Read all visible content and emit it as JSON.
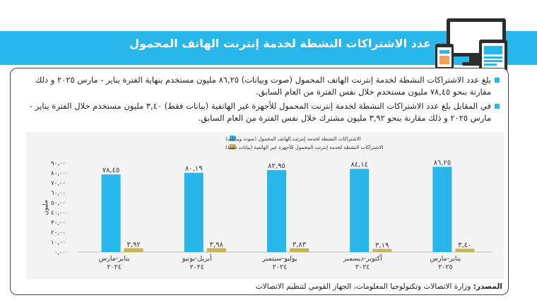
{
  "header": {
    "title": "عدد الاشتراكات النشطة لخدمة إنترنت الهاتف المحمول"
  },
  "bullets": [
    "بلغ عدد الاشتراكات النشطة لخدمة إنترنت الهاتف المحمول (صوت وبيانات) ٨٦,٢٥ مليون مستخدم بنهاية الفترة يناير - مارس ٢٠٢٥ و ذلك مقارنة بنحو ٧٨,٤٥ مليون مستخدم خلال نفس الفترة من العام السابق.",
    "في المقابل بلغ عدد الاشتراكات النشطة لخدمة إنترنت المحمول للأجهزة غير الهاتفية (بيانات فقط) ٣,٤٠ مليون مستخدم خلال الفترة يناير - مارس ٢٠٢٥ و ذلك مقارنة بنحو ٣,٩٢ مليون مشترك خلال نفس الفترة من العام السابق."
  ],
  "source": {
    "label": "المصدر:",
    "text": " وزارة الاتصالات وتكنولوجيا المعلومات، الجهاز القومي لتنظيم الاتصالات"
  },
  "chart_data": {
    "type": "bar",
    "ylabel": "مليون",
    "ylim": [
      0,
      90
    ],
    "yticks": [
      "٠,٠٠",
      "١٠,٠٠",
      "٢٠,٠٠",
      "٣٠,٠٠",
      "٤٠,٠٠",
      "٥٠,٠٠",
      "٦٠,٠٠",
      "٧٠,٠٠",
      "٨٠,٠٠",
      "٩٠,٠٠"
    ],
    "categories": [
      [
        "يناير-مارس",
        "٢٠٢٤"
      ],
      [
        "أبريل-يونيو",
        "٢٠٢٤"
      ],
      [
        "يوليو-سبتمبر",
        "٢٠٢٤"
      ],
      [
        "أكتوبر-ديسمبر",
        "٢٠٢٤"
      ],
      [
        "يناير-مارس",
        "٢٠٢٥"
      ]
    ],
    "series": [
      {
        "name": "الاشتراكات النشطة لخدمة إنترنت الهاتف المحمول (صوت وبيانات)",
        "color": "#29b6e8",
        "values": [
          78.45,
          80.19,
          82.95,
          84.14,
          86.25
        ],
        "labels": [
          "٧٨,٤٥",
          "٨٠,١٩",
          "٨٢,٩٥",
          "٨٤,١٤",
          "٨٦,٢٥"
        ]
      },
      {
        "name": "الاشتراكات النشطة لخدمة إنترنت المحمول للأجهزة غير الهاتفية (بيانات فقط)",
        "color": "#c9b25a",
        "values": [
          3.92,
          3.98,
          3.83,
          3.19,
          3.4
        ],
        "labels": [
          "٣,٩٢",
          "٣,٩٨",
          "٣,٨٣",
          "٣,١٩",
          "٣,٤٠"
        ]
      }
    ],
    "legend": "top-right",
    "grid": false
  }
}
